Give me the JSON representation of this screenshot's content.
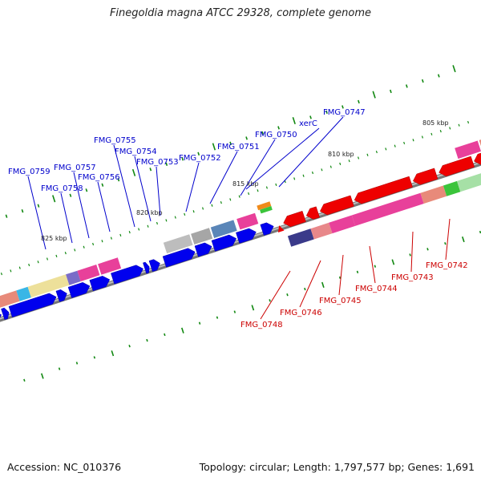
{
  "title": "Finegoldia magna ATCC 29328, complete genome",
  "footer": {
    "accession": "Accession: NC_010376",
    "summary": "Topology: circular; Length: 1,797,577 bp; Genes: 1,691"
  },
  "colors": {
    "forward_strand": "#0000ee",
    "reverse_strand": "#ee0000",
    "backbone": "#888888",
    "tick": "#118811",
    "forward_label": "#0000cc",
    "reverse_label": "#cc0000"
  },
  "scale_labels": [
    "805 kbp",
    "810 kbp",
    "815 kbp",
    "820 kbp",
    "825 kbp"
  ],
  "forward_gene_labels": [
    "FMG_0759",
    "FMG_0758",
    "FMG_0757",
    "FMG_0756",
    "FMG_0755",
    "FMG_0754",
    "FMG_0753",
    "FMG_0752",
    "FMG_0751",
    "FMG_0750",
    "xerC",
    "FMG_0747"
  ],
  "reverse_gene_labels": [
    "FMG_0748",
    "FMG_0746",
    "FMG_0745",
    "FMG_0744",
    "FMG_0743",
    "FMG_0742"
  ]
}
